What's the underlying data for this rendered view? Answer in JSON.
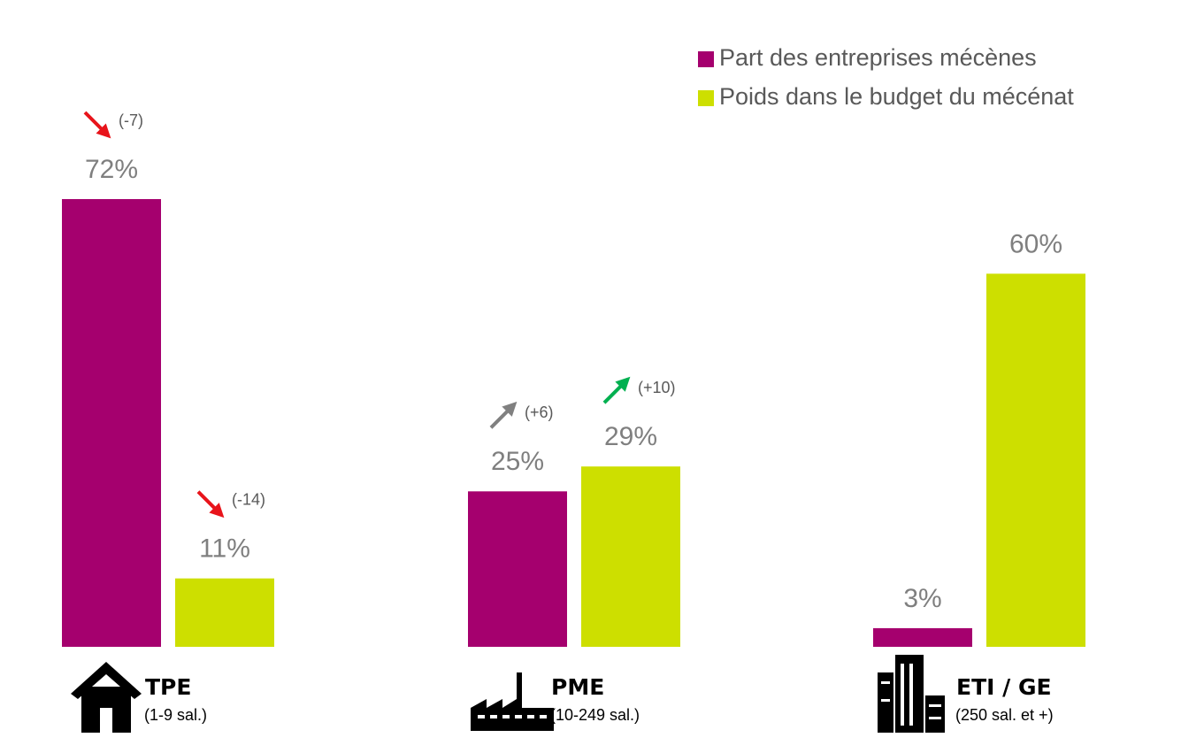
{
  "chart_data": {
    "type": "bar",
    "categories": [
      "TPE",
      "PME",
      "ETI / GE"
    ],
    "category_notes": [
      "(1-9 sal.)",
      "(10-249 sal.)",
      "(250 sal. et +)"
    ],
    "series": [
      {
        "name": "Part des entreprises mécènes",
        "color": "#a5006e",
        "values": [
          72,
          25,
          3
        ],
        "value_labels": [
          "72%",
          "25%",
          "3%"
        ],
        "changes": [
          {
            "label": "(-7)",
            "direction": "down",
            "color": "#e8141b"
          },
          {
            "label": "(+6)",
            "direction": "up",
            "color": "#808080"
          },
          null
        ]
      },
      {
        "name": "Poids dans le budget du mécénat",
        "color": "#cddf00",
        "values": [
          11,
          29,
          60
        ],
        "value_labels": [
          "11%",
          "29%",
          "60%"
        ],
        "changes": [
          {
            "label": "(-14)",
            "direction": "down",
            "color": "#e8141b"
          },
          {
            "label": "(+10)",
            "direction": "up",
            "color": "#00b050"
          },
          null
        ]
      }
    ],
    "legend": "top-right"
  }
}
